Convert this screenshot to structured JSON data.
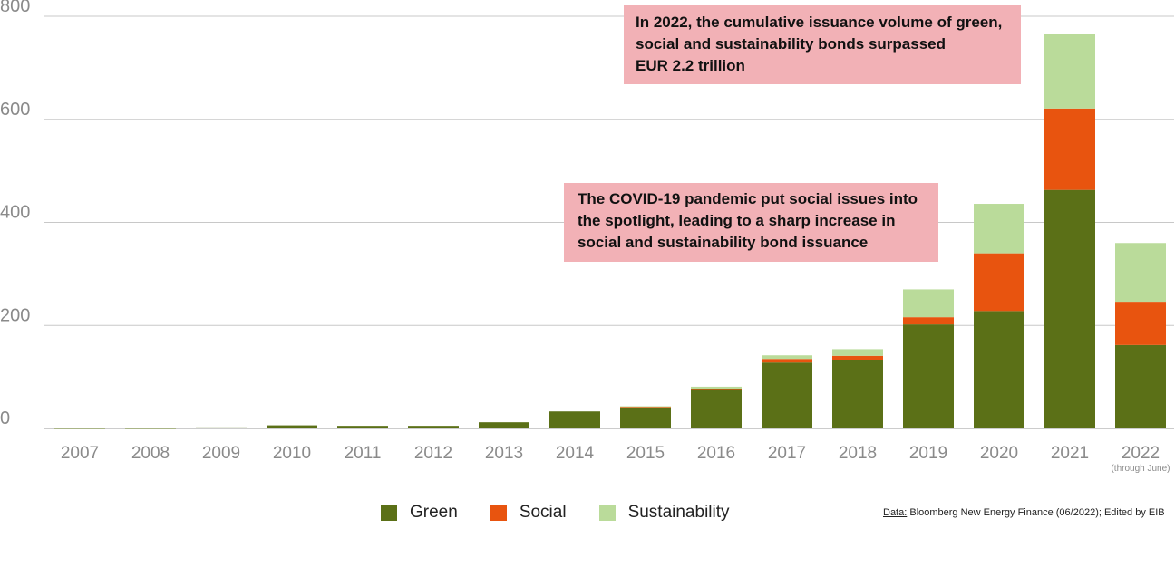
{
  "chart_data": {
    "type": "bar",
    "stacked": true,
    "categories": [
      "2007",
      "2008",
      "2009",
      "2010",
      "2011",
      "2012",
      "2013",
      "2014",
      "2015",
      "2016",
      "2017",
      "2018",
      "2019",
      "2020",
      "2021",
      "2022"
    ],
    "category_note": {
      "index": 15,
      "text": "(through June)"
    },
    "series": [
      {
        "name": "Green",
        "color": "#5b7017",
        "values": [
          0.5,
          0.5,
          2,
          6,
          5,
          5,
          12,
          33,
          40,
          75,
          128,
          132,
          202,
          228,
          463,
          162
        ]
      },
      {
        "name": "Social",
        "color": "#e8540f",
        "values": [
          0,
          0,
          0,
          0,
          0,
          0,
          0,
          0,
          2,
          1,
          7,
          9,
          14,
          112,
          158,
          84
        ]
      },
      {
        "name": "Sustainability",
        "color": "#badb9a",
        "values": [
          0,
          0,
          0,
          0,
          0,
          0,
          0,
          0,
          1,
          5,
          7,
          13,
          54,
          96,
          145,
          114
        ]
      }
    ],
    "ylim": [
      0,
      800
    ],
    "yticks": [
      "0",
      "200",
      "400",
      "600",
      "800"
    ],
    "grid": true,
    "legend_position": "bottom",
    "annotations": [
      {
        "lines": [
          "In 2022, the cumulative issuance volume of green,",
          "social and sustainability bonds surpassed",
          "EUR 2.2 trillion"
        ],
        "color": "#f2b1b6"
      },
      {
        "lines": [
          "The COVID-19 pandemic put social issues into",
          "the spotlight, leading to a sharp increase in",
          "social and sustainability bond issuance"
        ],
        "color": "#f2b1b6"
      }
    ],
    "source": {
      "label": "Data:",
      "text": " Bloomberg New Energy Finance (06/2022); Edited by EIB"
    }
  }
}
